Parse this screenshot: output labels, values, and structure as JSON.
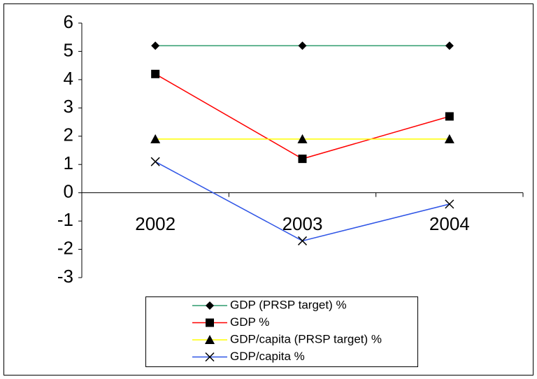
{
  "chart_data": {
    "type": "line",
    "categories": [
      "2002",
      "2003",
      "2004"
    ],
    "series": [
      {
        "name": "GDP (PRSP target) %",
        "color": "#2e9b6e",
        "marker": "diamond",
        "values": [
          5.2,
          5.2,
          5.2
        ]
      },
      {
        "name": "GDP %",
        "color": "#ff0000",
        "marker": "square",
        "values": [
          4.2,
          1.2,
          2.7
        ]
      },
      {
        "name": "GDP/capita (PRSP target) %",
        "color": "#ffff00",
        "marker": "triangle",
        "values": [
          1.9,
          1.9,
          1.9
        ]
      },
      {
        "name": "GDP/capita %",
        "color": "#2f55e6",
        "marker": "cross",
        "values": [
          1.1,
          -1.7,
          -0.4
        ]
      }
    ],
    "ylim": [
      -3,
      6
    ],
    "yticks": [
      -3,
      -2,
      -1,
      0,
      1,
      2,
      3,
      4,
      5,
      6
    ],
    "grid": false,
    "legend": "bottom"
  }
}
